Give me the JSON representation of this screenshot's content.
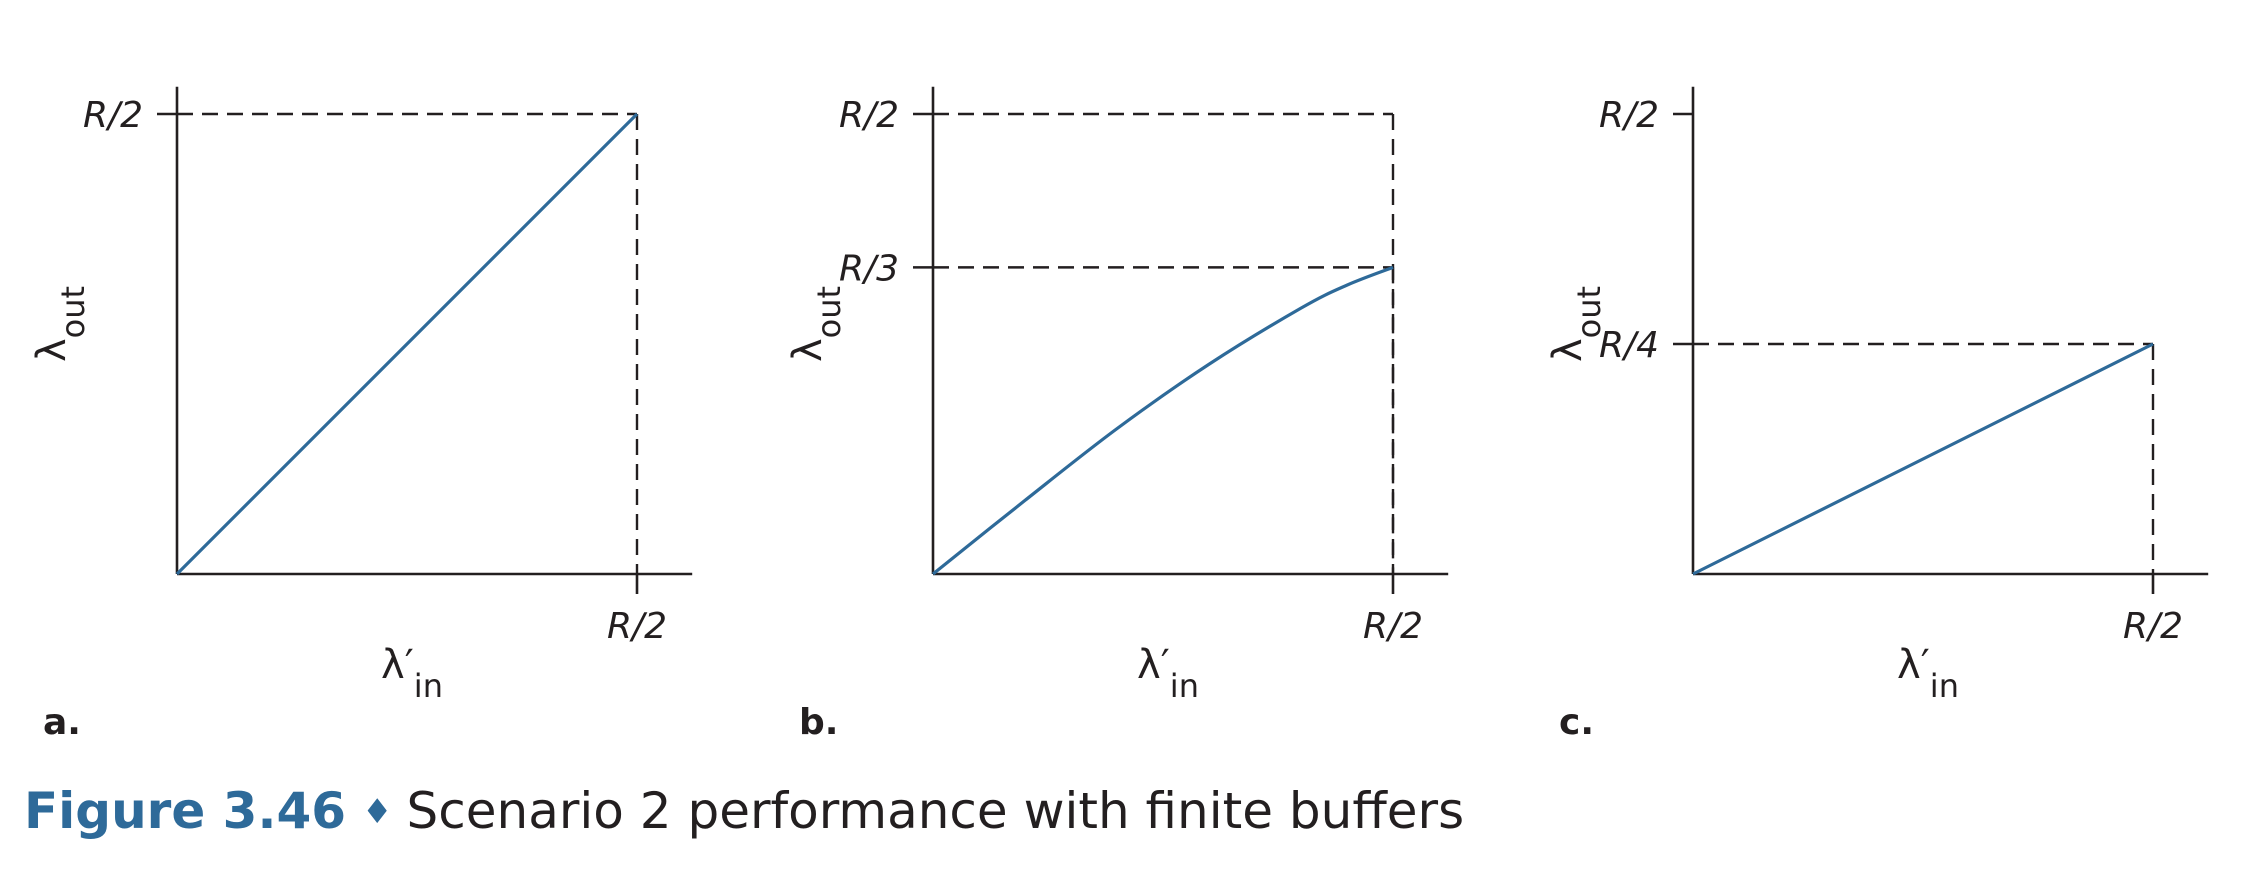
{
  "figure": {
    "number": "Figure 3.46",
    "separator": "♦",
    "caption": "Scenario 2 performance with finite buffers"
  },
  "colors": {
    "curve": "#2e6a99",
    "axes": "#231f20",
    "caption_accent": "#2e6a99"
  },
  "chart_data": [
    {
      "panel": "a.",
      "type": "line",
      "xlabel": "λ′in",
      "ylabel": "λout",
      "x_ticks": [
        {
          "value": 0.5,
          "label": "R/2"
        }
      ],
      "y_ticks": [
        {
          "value": 0.5,
          "label": "R/2"
        }
      ],
      "xlim": [
        0,
        0.56
      ],
      "ylim": [
        0,
        0.56
      ],
      "series": [
        {
          "x": [
            0,
            0.5
          ],
          "y": [
            0,
            0.5
          ]
        }
      ],
      "guides": [
        {
          "x": 0.5,
          "y": 0.5
        }
      ]
    },
    {
      "panel": "b.",
      "type": "line",
      "xlabel": "λ′in",
      "ylabel": "λout",
      "x_ticks": [
        {
          "value": 0.5,
          "label": "R/2"
        }
      ],
      "y_ticks": [
        {
          "value": 0.5,
          "label": "R/2"
        },
        {
          "value": 0.3333,
          "label": "R/3"
        }
      ],
      "xlim": [
        0,
        0.56
      ],
      "ylim": [
        0,
        0.56
      ],
      "series": [
        {
          "x": [
            0,
            0.1,
            0.2,
            0.3,
            0.4,
            0.45,
            0.5
          ],
          "y": [
            0,
            0.08,
            0.158,
            0.228,
            0.289,
            0.314,
            0.3333
          ]
        }
      ],
      "guides": [
        {
          "x": 0.5,
          "y": 0.5
        },
        {
          "x": 0.5,
          "y": 0.3333
        }
      ]
    },
    {
      "panel": "c.",
      "type": "line",
      "xlabel": "λ′in",
      "ylabel": "λout",
      "x_ticks": [
        {
          "value": 0.5,
          "label": "R/2"
        }
      ],
      "y_ticks": [
        {
          "value": 0.5,
          "label": "R/2"
        },
        {
          "value": 0.25,
          "label": "R/4"
        }
      ],
      "xlim": [
        0,
        0.56
      ],
      "ylim": [
        0,
        0.56
      ],
      "series": [
        {
          "x": [
            0,
            0.5
          ],
          "y": [
            0,
            0.25
          ]
        }
      ],
      "guides": [
        {
          "x": 0.5,
          "y": 0.25
        }
      ]
    }
  ]
}
